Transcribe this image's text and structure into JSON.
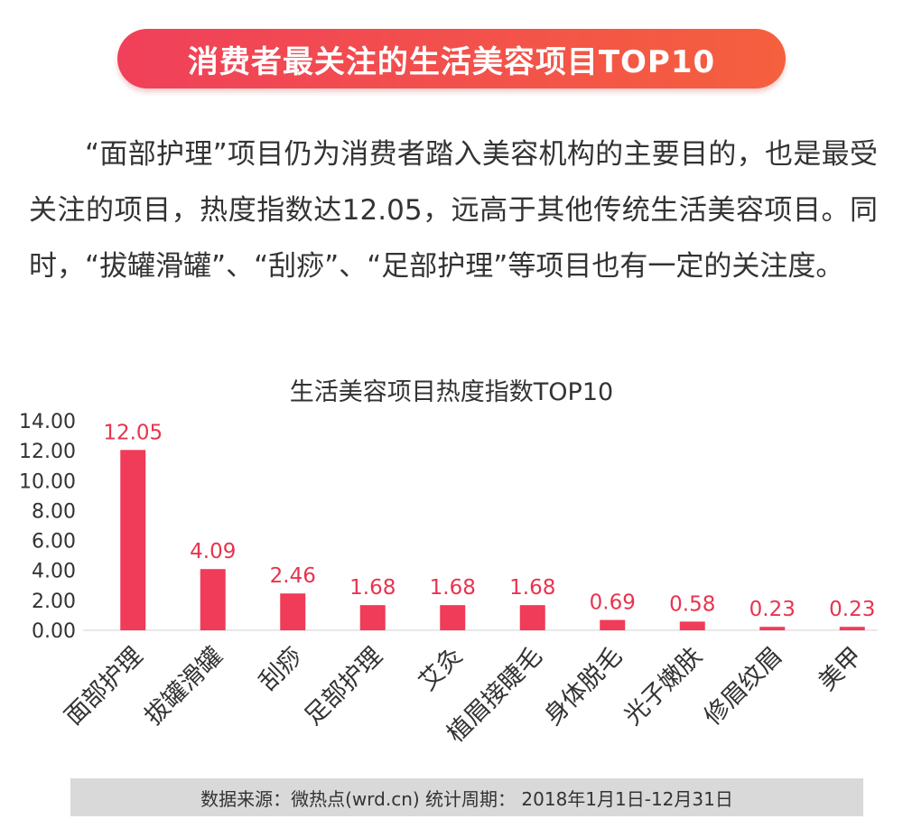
{
  "banner": {
    "title": "消费者最关注的生活美容项目TOP10"
  },
  "intro": {
    "text": "“面部护理”项目仍为消费者踏入美容机构的主要目的，也是最受关注的项目，热度指数达12.05，远高于其他传统生活美容项目。同时，“拔罐滑罐”、“刮痧”、“足部护理”等项目也有一定的关注度。"
  },
  "colors": {
    "accent": "#f0405a",
    "bar": "#f03b59",
    "label": "#e8344e",
    "footer_bg": "#d9d9d9"
  },
  "chart_data": {
    "type": "bar",
    "title": "生活美容项目热度指数TOP10",
    "categories": [
      "面部护理",
      "拔罐滑罐",
      "刮痧",
      "足部护理",
      "艾灸",
      "植眉接睫毛",
      "身体脱毛",
      "光子嫩肤",
      "修眉纹眉",
      "美甲"
    ],
    "values": [
      12.05,
      4.09,
      2.46,
      1.68,
      1.68,
      1.68,
      0.69,
      0.58,
      0.23,
      0.23
    ],
    "value_labels": [
      "12.05",
      "4.09",
      "2.46",
      "1.68",
      "1.68",
      "1.68",
      "0.69",
      "0.58",
      "0.23",
      "0.23"
    ],
    "ylim": [
      0,
      14
    ],
    "yticks": [
      "0.00",
      "2.00",
      "4.00",
      "6.00",
      "8.00",
      "10.00",
      "12.00",
      "14.00"
    ],
    "xlabel": "",
    "ylabel": "",
    "grid": false,
    "legend": "none"
  },
  "footer": {
    "text": "数据来源：微热点(wrd.cn) 统计周期： 2018年1月1日-12月31日"
  }
}
